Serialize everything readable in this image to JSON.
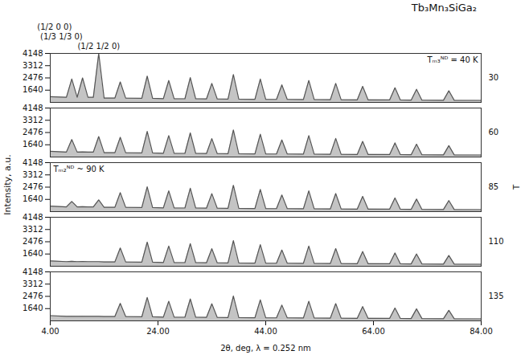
{
  "chart_data": {
    "type": "area",
    "title": "Tb₃Mn₃SiGa₂",
    "x_label": "2θ, deg, λ = 0.252 nm",
    "y_label": "Intensity, a.u.",
    "series_axis_label": "T",
    "color": "#555555",
    "x": [
      4,
      7,
      8,
      9,
      10,
      11,
      12,
      13,
      14,
      16,
      17,
      18,
      21,
      22,
      23,
      25,
      26,
      27,
      29,
      30,
      31,
      33,
      34,
      35,
      37,
      38,
      39,
      42,
      43,
      44,
      46,
      47,
      48,
      51,
      52,
      53,
      56,
      57,
      58,
      61,
      62,
      63,
      67,
      68,
      69,
      71,
      72,
      73,
      77,
      78,
      79,
      84
    ],
    "xlim": [
      4,
      84
    ],
    "xticks": [
      {
        "value": 4,
        "label": "4.00"
      },
      {
        "value": 24,
        "label": "24.00"
      },
      {
        "value": 44,
        "label": "44.00"
      },
      {
        "value": 64,
        "label": "64.00"
      },
      {
        "value": 84,
        "label": "84.00"
      }
    ],
    "ylim": [
      804,
      4148
    ],
    "yticks": [
      1640,
      2476,
      3312,
      4148
    ],
    "series": [
      {
        "name": "30",
        "values": [
          1200,
          1150,
          2400,
          1150,
          2476,
          1150,
          1150,
          4148,
          1100,
          1100,
          2200,
          1100,
          1080,
          2600,
          1080,
          1060,
          2300,
          1060,
          1050,
          2500,
          1050,
          1040,
          2100,
          1040,
          1030,
          2700,
          1030,
          1020,
          2400,
          1020,
          1010,
          2000,
          1010,
          1000,
          2300,
          1000,
          990,
          2100,
          990,
          980,
          1900,
          980,
          970,
          1800,
          970,
          960,
          1700,
          960,
          950,
          1600,
          950,
          940
        ]
      },
      {
        "name": "60",
        "values": [
          1190,
          1140,
          2000,
          1140,
          1150,
          1140,
          1140,
          2200,
          1100,
          1100,
          2150,
          1100,
          1080,
          2550,
          1080,
          1060,
          2260,
          1060,
          1050,
          2450,
          1050,
          1040,
          2060,
          1040,
          1030,
          2650,
          1030,
          1020,
          2360,
          1020,
          1010,
          1970,
          1010,
          1000,
          2260,
          1000,
          990,
          2070,
          990,
          980,
          1870,
          980,
          970,
          1770,
          970,
          960,
          1680,
          960,
          950,
          1580,
          950,
          940
        ]
      },
      {
        "name": "85",
        "values": [
          1180,
          1130,
          1500,
          1130,
          1140,
          1130,
          1130,
          1600,
          1100,
          1100,
          2100,
          1100,
          1080,
          2500,
          1080,
          1060,
          2220,
          1060,
          1050,
          2400,
          1050,
          1040,
          2030,
          1040,
          1030,
          2600,
          1030,
          1020,
          2320,
          1020,
          1010,
          1940,
          1010,
          1000,
          2220,
          1000,
          990,
          2040,
          990,
          980,
          1840,
          980,
          970,
          1740,
          970,
          960,
          1660,
          960,
          950,
          1560,
          950,
          940
        ]
      },
      {
        "name": "110",
        "values": [
          1170,
          1120,
          1140,
          1120,
          1130,
          1120,
          1120,
          1120,
          1100,
          1100,
          2050,
          1100,
          1080,
          2450,
          1080,
          1060,
          2180,
          1060,
          1050,
          2350,
          1050,
          1040,
          2000,
          1040,
          1030,
          2550,
          1030,
          1020,
          2280,
          1020,
          1010,
          1910,
          1010,
          1000,
          2180,
          1000,
          990,
          2010,
          990,
          980,
          1810,
          980,
          970,
          1710,
          970,
          960,
          1640,
          960,
          950,
          1540,
          950,
          940
        ]
      },
      {
        "name": "135",
        "values": [
          1160,
          1110,
          1120,
          1110,
          1120,
          1110,
          1110,
          1110,
          1100,
          1100,
          2000,
          1100,
          1080,
          2400,
          1080,
          1060,
          2140,
          1060,
          1050,
          2300,
          1050,
          1040,
          1970,
          1040,
          1030,
          2500,
          1030,
          1020,
          2240,
          1020,
          1010,
          1880,
          1010,
          1000,
          2140,
          1000,
          990,
          1980,
          990,
          980,
          1780,
          980,
          970,
          1680,
          970,
          960,
          1620,
          960,
          950,
          1520,
          950,
          940
        ]
      }
    ],
    "peak_labels": [
      {
        "label": "(1/2 1/2 0)",
        "x": 13
      },
      {
        "label": "(1/3 1/3 0)",
        "x": 10
      },
      {
        "label": "(1/2 0 0)",
        "x": 8
      }
    ],
    "annotations": [
      {
        "text": "Tₘ₃ᴺᴰ = 40 K",
        "series": "30"
      },
      {
        "text": "Tₘ₂ᴺᴰ ~ 90 K",
        "series": "85"
      }
    ]
  }
}
